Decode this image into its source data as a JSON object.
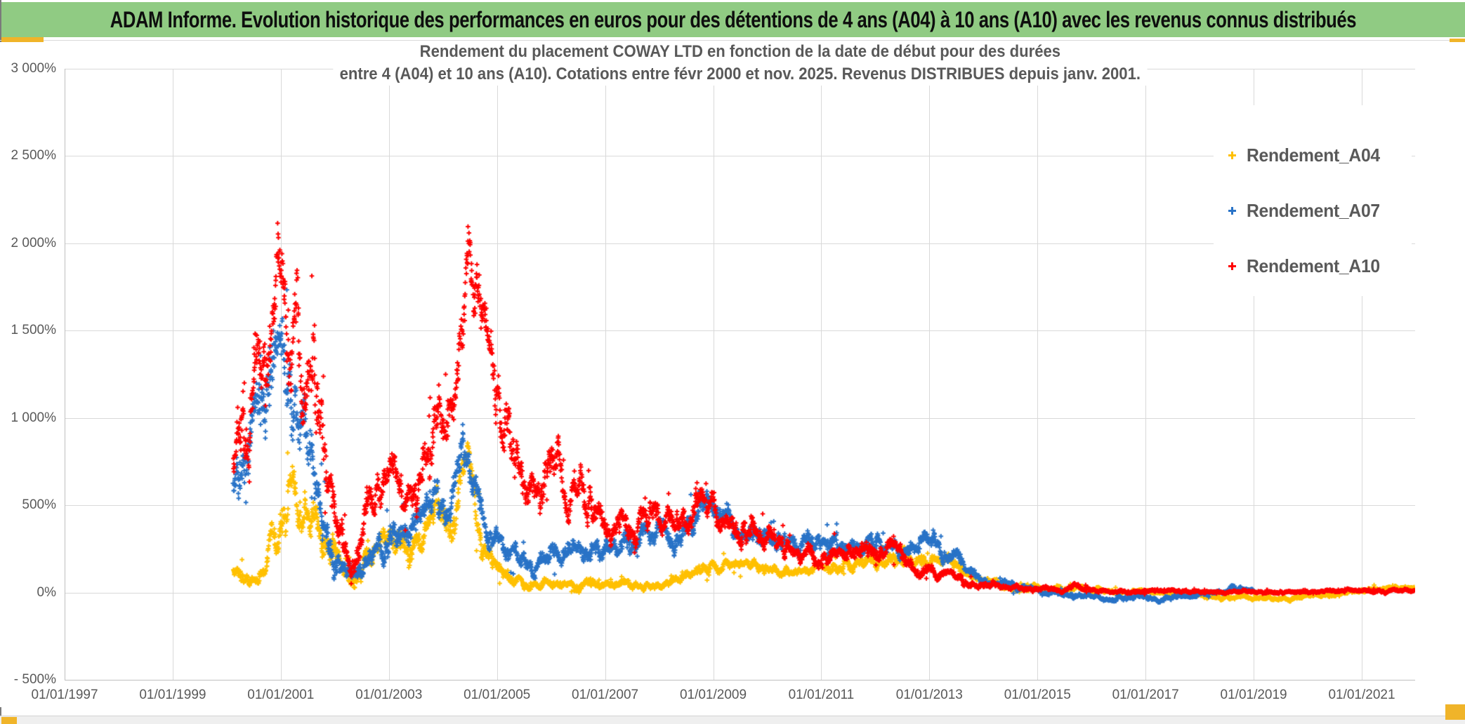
{
  "window": {
    "title": "ADAM Informe. Evolution historique des performances en euros pour des détentions de 4 ans (A04) à 10 ans (A10) avec les revenus connus distribués"
  },
  "theme": {
    "header_green": "#90CB83",
    "accent_yellow": "#F0B429",
    "text_gray": "#595959",
    "gridline_gray": "#D9D9D9",
    "axis_gray": "#BFBFBF"
  },
  "chart": {
    "title_line1": "Rendement du placement COWAY LTD en fonction de la date de début pour des durées",
    "title_line2": "entre 4 (A04) et 10 ans (A10). Cotations entre févr 2000 et nov. 2025. Revenus DISTRIBUES depuis janv. 2001.",
    "y_axis": {
      "tick_labels": [
        "3 000%",
        "2 500%",
        "2 000%",
        "1 500%",
        "1 000%",
        "500%",
        "0%",
        "- 500%"
      ],
      "max_pct": 3000,
      "min_pct": -500,
      "step_pct": 500
    },
    "x_axis": {
      "tick_labels": [
        "01/01/1997",
        "01/01/1999",
        "01/01/2001",
        "01/01/2003",
        "01/01/2005",
        "01/01/2007",
        "01/01/2009",
        "01/01/2011",
        "01/01/2013",
        "01/01/2015",
        "01/01/2017",
        "01/01/2019",
        "01/01/2021"
      ]
    },
    "legend": [
      {
        "label": "Rendement_A04",
        "color": "#FFC000"
      },
      {
        "label": "Rendement_A07",
        "color": "#2973C7"
      },
      {
        "label": "Rendement_A10",
        "color": "#FF0000"
      }
    ]
  },
  "chart_data": {
    "type": "scatter",
    "marker": "plus",
    "x_unit": "decimal_year",
    "y_unit": "percent",
    "x_range": [
      1997,
      2022
    ],
    "y_range": [
      -500,
      3000
    ],
    "grid": true,
    "legend_position": "right",
    "note": "envelope = [year, mean_pct, spread_pct] read off the chart; dense daily '+' cloud fluctuates around mean within ±~2×spread",
    "series": [
      {
        "name": "Rendement_A04",
        "color": "#FFC000",
        "seed": 101,
        "points_per_year": 190,
        "envelope": [
          [
            2000.12,
            130,
            40
          ],
          [
            2000.4,
            80,
            30
          ],
          [
            2000.7,
            140,
            40
          ],
          [
            2000.95,
            350,
            110
          ],
          [
            2001.1,
            550,
            130
          ],
          [
            2001.3,
            480,
            110
          ],
          [
            2001.5,
            450,
            100
          ],
          [
            2001.7,
            420,
            100
          ],
          [
            2001.9,
            280,
            80
          ],
          [
            2002.15,
            100,
            35
          ],
          [
            2002.5,
            170,
            50
          ],
          [
            2002.8,
            220,
            50
          ],
          [
            2003.0,
            260,
            60
          ],
          [
            2003.3,
            300,
            70
          ],
          [
            2003.6,
            280,
            60
          ],
          [
            2003.85,
            450,
            80
          ],
          [
            2004.1,
            350,
            70
          ],
          [
            2004.45,
            650,
            100
          ],
          [
            2004.6,
            450,
            90
          ],
          [
            2004.8,
            250,
            60
          ],
          [
            2004.95,
            150,
            40
          ],
          [
            2005.2,
            80,
            30
          ],
          [
            2005.45,
            40,
            20
          ],
          [
            2005.8,
            50,
            22
          ],
          [
            2006.2,
            35,
            18
          ],
          [
            2006.6,
            55,
            22
          ],
          [
            2007.0,
            40,
            18
          ],
          [
            2007.4,
            55,
            20
          ],
          [
            2007.8,
            30,
            15
          ],
          [
            2008.2,
            55,
            20
          ],
          [
            2008.6,
            90,
            28
          ],
          [
            2008.9,
            140,
            28
          ],
          [
            2009.15,
            165,
            25
          ],
          [
            2009.5,
            150,
            22
          ],
          [
            2010.0,
            145,
            22
          ],
          [
            2010.5,
            135,
            20
          ],
          [
            2011.0,
            140,
            20
          ],
          [
            2011.5,
            155,
            25
          ],
          [
            2012.0,
            190,
            30
          ],
          [
            2012.3,
            215,
            32
          ],
          [
            2012.6,
            185,
            28
          ],
          [
            2013.0,
            160,
            25
          ],
          [
            2013.3,
            175,
            25
          ],
          [
            2013.6,
            140,
            24
          ],
          [
            2013.9,
            80,
            20
          ],
          [
            2014.2,
            45,
            15
          ],
          [
            2014.6,
            25,
            12
          ],
          [
            2015.0,
            25,
            12
          ],
          [
            2015.5,
            30,
            12
          ],
          [
            2016.0,
            20,
            10
          ],
          [
            2016.5,
            12,
            8
          ],
          [
            2017.0,
            10,
            8
          ],
          [
            2017.6,
            -5,
            8
          ],
          [
            2018.2,
            -20,
            9
          ],
          [
            2018.8,
            -30,
            9
          ],
          [
            2019.4,
            -35,
            9
          ],
          [
            2019.9,
            -25,
            9
          ],
          [
            2020.3,
            -10,
            8
          ],
          [
            2020.8,
            5,
            8
          ],
          [
            2021.3,
            25,
            9
          ],
          [
            2021.7,
            20,
            8
          ],
          [
            2022.0,
            15,
            8
          ]
        ]
      },
      {
        "name": "Rendement_A07",
        "color": "#2973C7",
        "seed": 202,
        "points_per_year": 190,
        "envelope": [
          [
            2000.12,
            640,
            110
          ],
          [
            2000.35,
            760,
            140
          ],
          [
            2000.6,
            1050,
            180
          ],
          [
            2000.85,
            1350,
            210
          ],
          [
            2000.98,
            1500,
            220
          ],
          [
            2001.15,
            1150,
            180
          ],
          [
            2001.35,
            1020,
            150
          ],
          [
            2001.6,
            750,
            140
          ],
          [
            2001.8,
            480,
            110
          ],
          [
            2002.0,
            280,
            80
          ],
          [
            2002.2,
            90,
            35
          ],
          [
            2002.45,
            140,
            45
          ],
          [
            2002.7,
            280,
            65
          ],
          [
            2003.0,
            340,
            65
          ],
          [
            2003.3,
            380,
            70
          ],
          [
            2003.6,
            420,
            75
          ],
          [
            2003.85,
            560,
            85
          ],
          [
            2004.1,
            420,
            80
          ],
          [
            2004.45,
            930,
            110
          ],
          [
            2004.6,
            620,
            95
          ],
          [
            2004.8,
            380,
            75
          ],
          [
            2005.0,
            300,
            60
          ],
          [
            2005.3,
            180,
            45
          ],
          [
            2005.6,
            200,
            45
          ],
          [
            2006.0,
            210,
            45
          ],
          [
            2006.4,
            240,
            48
          ],
          [
            2006.8,
            260,
            50
          ],
          [
            2007.0,
            230,
            45
          ],
          [
            2007.4,
            280,
            52
          ],
          [
            2007.8,
            320,
            55
          ],
          [
            2008.1,
            340,
            58
          ],
          [
            2008.4,
            310,
            55
          ],
          [
            2008.7,
            450,
            70
          ],
          [
            2008.9,
            530,
            55
          ],
          [
            2009.1,
            480,
            55
          ],
          [
            2009.4,
            390,
            50
          ],
          [
            2009.7,
            350,
            48
          ],
          [
            2010.0,
            330,
            48
          ],
          [
            2010.3,
            310,
            46
          ],
          [
            2010.6,
            290,
            44
          ],
          [
            2011.0,
            280,
            44
          ],
          [
            2011.3,
            300,
            44
          ],
          [
            2011.6,
            270,
            40
          ],
          [
            2011.9,
            260,
            40
          ],
          [
            2012.2,
            270,
            40
          ],
          [
            2012.5,
            230,
            38
          ],
          [
            2012.8,
            250,
            42
          ],
          [
            2013.05,
            290,
            42
          ],
          [
            2013.3,
            230,
            38
          ],
          [
            2013.6,
            160,
            30
          ],
          [
            2013.9,
            90,
            24
          ],
          [
            2014.2,
            50,
            18
          ],
          [
            2014.6,
            30,
            14
          ],
          [
            2015.0,
            20,
            12
          ],
          [
            2015.4,
            5,
            10
          ],
          [
            2015.8,
            -20,
            10
          ],
          [
            2016.3,
            -30,
            10
          ],
          [
            2016.8,
            -35,
            10
          ],
          [
            2017.3,
            -30,
            10
          ],
          [
            2017.8,
            -15,
            10
          ],
          [
            2018.3,
            0,
            10
          ],
          [
            2018.7,
            20,
            10
          ],
          [
            2019.0,
            10,
            8
          ]
        ]
      },
      {
        "name": "Rendement_A10",
        "color": "#FF0000",
        "seed": 303,
        "points_per_year": 190,
        "envelope": [
          [
            2000.12,
            720,
            140
          ],
          [
            2000.35,
            850,
            180
          ],
          [
            2000.6,
            1200,
            220
          ],
          [
            2000.85,
            1600,
            260
          ],
          [
            2000.98,
            2050,
            250
          ],
          [
            2001.15,
            1500,
            240
          ],
          [
            2001.3,
            1650,
            220
          ],
          [
            2001.5,
            1450,
            200
          ],
          [
            2001.7,
            1050,
            200
          ],
          [
            2001.9,
            650,
            150
          ],
          [
            2002.1,
            380,
            100
          ],
          [
            2002.3,
            200,
            60
          ],
          [
            2002.55,
            350,
            90
          ],
          [
            2002.8,
            520,
            105
          ],
          [
            2003.0,
            640,
            105
          ],
          [
            2003.25,
            560,
            95
          ],
          [
            2003.5,
            600,
            95
          ],
          [
            2003.7,
            750,
            115
          ],
          [
            2003.9,
            1020,
            125
          ],
          [
            2004.05,
            1050,
            115
          ],
          [
            2004.2,
            900,
            110
          ],
          [
            2004.35,
            1400,
            190
          ],
          [
            2004.48,
            2050,
            180
          ],
          [
            2004.6,
            1850,
            190
          ],
          [
            2004.75,
            1600,
            170
          ],
          [
            2004.9,
            1350,
            145
          ],
          [
            2005.05,
            1050,
            145
          ],
          [
            2005.25,
            780,
            115
          ],
          [
            2005.5,
            600,
            95
          ],
          [
            2005.75,
            640,
            95
          ],
          [
            2006.0,
            760,
            105
          ],
          [
            2006.25,
            560,
            85
          ],
          [
            2006.5,
            610,
            85
          ],
          [
            2006.75,
            480,
            78
          ],
          [
            2007.0,
            360,
            68
          ],
          [
            2007.3,
            400,
            68
          ],
          [
            2007.6,
            350,
            62
          ],
          [
            2007.9,
            420,
            66
          ],
          [
            2008.15,
            420,
            66
          ],
          [
            2008.45,
            370,
            62
          ],
          [
            2008.7,
            460,
            70
          ],
          [
            2009.0,
            540,
            65
          ],
          [
            2009.25,
            450,
            62
          ],
          [
            2009.55,
            390,
            58
          ],
          [
            2009.85,
            330,
            52
          ],
          [
            2010.15,
            310,
            48
          ],
          [
            2010.45,
            230,
            44
          ],
          [
            2010.75,
            200,
            40
          ],
          [
            2011.0,
            210,
            40
          ],
          [
            2011.3,
            260,
            42
          ],
          [
            2011.6,
            235,
            40
          ],
          [
            2011.95,
            260,
            40
          ],
          [
            2012.25,
            270,
            40
          ],
          [
            2012.55,
            210,
            35
          ],
          [
            2012.85,
            160,
            30
          ],
          [
            2013.1,
            130,
            25
          ],
          [
            2013.4,
            100,
            22
          ],
          [
            2013.7,
            70,
            18
          ],
          [
            2014.0,
            45,
            15
          ],
          [
            2014.4,
            30,
            12
          ],
          [
            2014.9,
            22,
            10
          ],
          [
            2015.3,
            30,
            11
          ],
          [
            2015.7,
            35,
            11
          ],
          [
            2016.1,
            15,
            8
          ],
          [
            2016.6,
            8,
            7
          ],
          [
            2017.2,
            6,
            6
          ],
          [
            2018.0,
            8,
            6
          ],
          [
            2019.0,
            5,
            6
          ],
          [
            2020.0,
            6,
            6
          ],
          [
            2021.0,
            8,
            6
          ],
          [
            2021.5,
            12,
            7
          ],
          [
            2022.0,
            10,
            6
          ]
        ]
      }
    ]
  }
}
